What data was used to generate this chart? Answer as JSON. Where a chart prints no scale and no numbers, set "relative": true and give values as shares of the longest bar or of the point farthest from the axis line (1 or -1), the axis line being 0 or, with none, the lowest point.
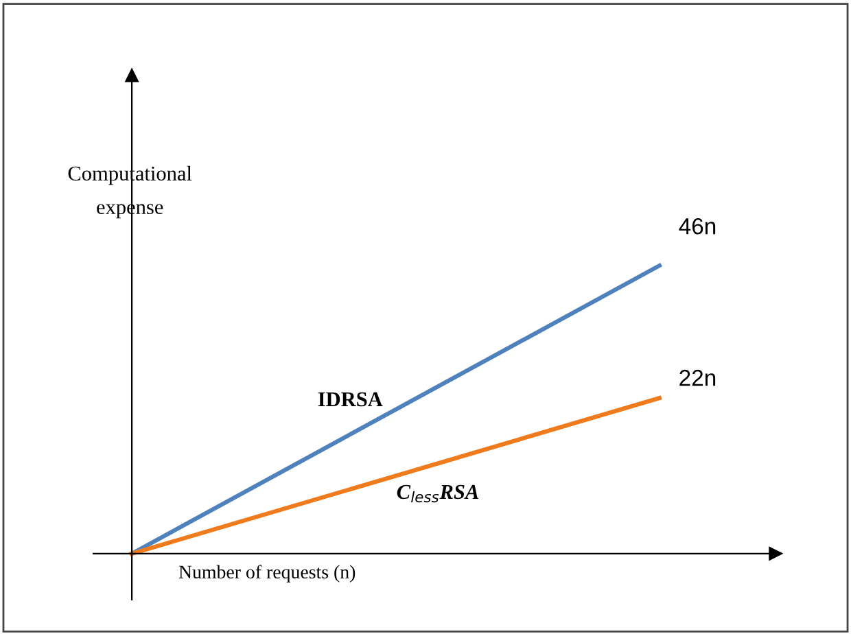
{
  "chart_data": {
    "type": "line",
    "relative": true,
    "xlabel": "Number of requests (n)",
    "ylabel": "Computational expense",
    "categories": [
      null,
      null
    ],
    "series": [
      {
        "name": "IDRSA",
        "color": "#4f81bd",
        "values": [
          0,
          1
        ]
      },
      {
        "name": "C$_{less}$RSA",
        "color": "#f07b1d",
        "values": [
          0,
          0.54
        ]
      }
    ],
    "annotations": [
      "46n",
      "22n"
    ],
    "legend": false,
    "marker": "none",
    "line_style": "solid"
  }
}
